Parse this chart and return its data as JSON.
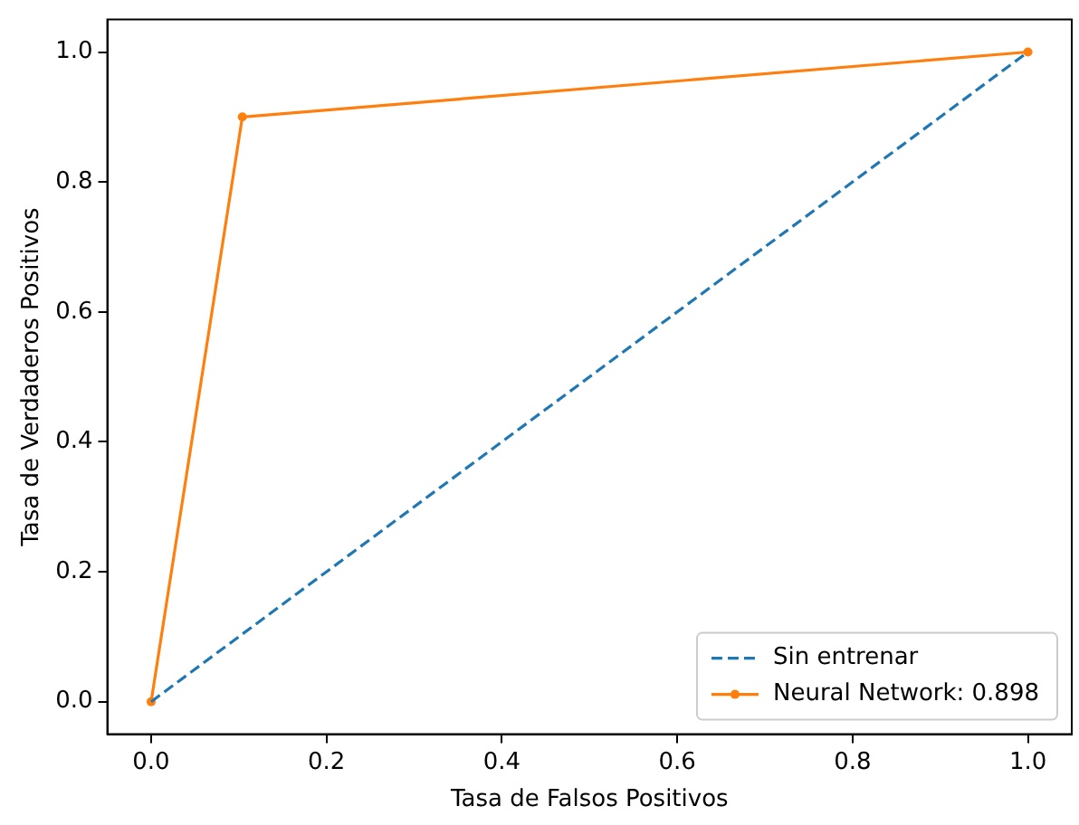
{
  "chart_data": {
    "type": "line",
    "xlabel": "Tasa de Falsos Positivos",
    "ylabel": "Tasa de Verdaderos Positivos",
    "xlim": [
      -0.05,
      1.05
    ],
    "ylim": [
      -0.05,
      1.05
    ],
    "xticks": [
      {
        "value": 0,
        "label": "0.0"
      },
      {
        "value": 0.2,
        "label": "0.2"
      },
      {
        "value": 0.4,
        "label": "0.4"
      },
      {
        "value": 0.6,
        "label": "0.6"
      },
      {
        "value": 0.8,
        "label": "0.8"
      },
      {
        "value": 1,
        "label": "1.0"
      }
    ],
    "yticks": [
      {
        "value": 0,
        "label": "0.0"
      },
      {
        "value": 0.2,
        "label": "0.2"
      },
      {
        "value": 0.4,
        "label": "0.4"
      },
      {
        "value": 0.6,
        "label": "0.6"
      },
      {
        "value": 0.8,
        "label": "0.8"
      },
      {
        "value": 1,
        "label": "1.0"
      }
    ],
    "grid": false,
    "legend": "bottom right",
    "series": [
      {
        "name": "Sin entrenar",
        "color": "#1f77b4",
        "x": [
          0,
          1
        ],
        "values": [
          0,
          1
        ],
        "line_style": "dashed",
        "marker": "none"
      },
      {
        "name": "Neural Network: 0.898",
        "color": "#ff7f0e",
        "x": [
          0,
          0.104,
          1
        ],
        "values": [
          0,
          0.9,
          1
        ],
        "line_style": "solid",
        "marker": "circle"
      }
    ]
  }
}
